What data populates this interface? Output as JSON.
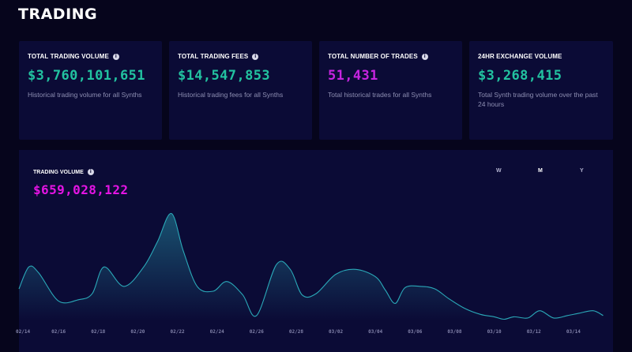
{
  "page": {
    "title": "TRADING"
  },
  "cards": [
    {
      "label": "TOTAL TRADING VOLUME",
      "value": "$3,760,101,651",
      "description": "Historical trading volume for all Synths",
      "color": "#22c2a0"
    },
    {
      "label": "TOTAL TRADING FEES",
      "value": "$14,547,853",
      "description": "Historical trading fees for all Synths",
      "color": "#22c2a0"
    },
    {
      "label": "TOTAL NUMBER OF TRADES",
      "value": "51,431",
      "description": "Total historical trades for all Synths",
      "color": "#c724e0"
    },
    {
      "label": "24HR EXCHANGE VOLUME",
      "value": "$3,268,415",
      "description": "Total Synth trading volume over the past 24 hours",
      "color": "#22c2a0"
    }
  ],
  "volume_chart": {
    "label": "TRADING VOLUME",
    "total": "$659,028,122",
    "periods": [
      "W",
      "M",
      "Y"
    ],
    "active_period": "M",
    "line_color": "#2aa8b8",
    "accent_color": "#e414e4"
  },
  "chart_data": {
    "type": "area",
    "title": "TRADING VOLUME",
    "x_tick_labels": [
      "02/14",
      "02/16",
      "02/18",
      "02/20",
      "02/22",
      "02/24",
      "02/26",
      "02/28",
      "03/02",
      "03/04",
      "03/06",
      "03/08",
      "03/10",
      "03/12",
      "03/14"
    ],
    "x": [
      14.0,
      14.5,
      15.0,
      16.0,
      17.0,
      17.7,
      18.3,
      19.3,
      20.3,
      21.0,
      21.7,
      22.3,
      23.0,
      23.8,
      24.5,
      25.3,
      26.0,
      27.0,
      27.7,
      28.3,
      29.0,
      30.0,
      31.0,
      32.0,
      32.5,
      33.0,
      33.5,
      34.3,
      35.0,
      35.7,
      36.5,
      37.3,
      38.0,
      38.5,
      39.0,
      39.7,
      40.3,
      41.0,
      41.7,
      42.3,
      43.0,
      43.5
    ],
    "values": [
      26,
      44,
      39,
      16,
      17,
      22,
      44,
      28,
      44,
      65,
      88,
      57,
      28,
      24,
      32,
      21,
      4,
      46,
      42,
      21,
      22,
      38,
      42,
      36,
      25,
      14,
      27,
      28,
      26,
      18,
      10,
      5,
      3,
      1,
      3,
      2,
      8,
      2,
      4,
      6,
      8,
      4
    ],
    "ylim": [
      0,
      100
    ],
    "xlim": [
      14,
      44
    ],
    "grid": false,
    "legend": "none"
  }
}
